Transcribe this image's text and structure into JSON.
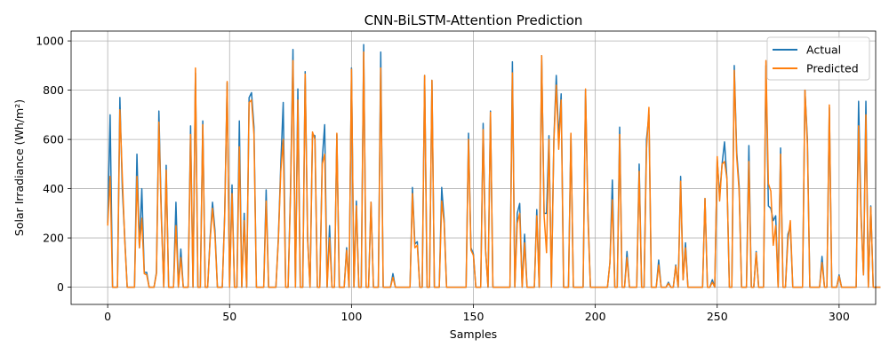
{
  "chart_data": {
    "type": "line",
    "title": "CNN-BiLSTM-Attention Prediction",
    "xlabel": "Samples",
    "ylabel": "Solar Irradiance (Wh/m²)",
    "xlim": [
      -15,
      315
    ],
    "ylim": [
      -70,
      1040
    ],
    "xticks": [
      0,
      50,
      100,
      150,
      200,
      250,
      300
    ],
    "yticks": [
      0,
      200,
      400,
      600,
      800,
      1000
    ],
    "grid": true,
    "legend_position": "top-right",
    "series": [
      {
        "name": "Actual",
        "color": "#1f77b4",
        "values": [
          260,
          700,
          0,
          0,
          0,
          770,
          400,
          200,
          0,
          0,
          0,
          0,
          540,
          160,
          400,
          60,
          60,
          0,
          0,
          0,
          60,
          715,
          300,
          0,
          495,
          0,
          0,
          0,
          345,
          0,
          155,
          0,
          0,
          0,
          655,
          0,
          870,
          0,
          0,
          675,
          0,
          0,
          200,
          345,
          230,
          0,
          0,
          0,
          300,
          830,
          0,
          415,
          0,
          0,
          675,
          0,
          300,
          0,
          770,
          790,
          650,
          0,
          0,
          0,
          0,
          395,
          0,
          0,
          0,
          0,
          200,
          500,
          750,
          0,
          0,
          400,
          965,
          0,
          805,
          0,
          0,
          875,
          200,
          0,
          620,
          615,
          0,
          0,
          520,
          660,
          0,
          250,
          0,
          0,
          620,
          0,
          0,
          0,
          160,
          0,
          890,
          0,
          350,
          0,
          0,
          985,
          0,
          0,
          345,
          0,
          0,
          0,
          955,
          0,
          0,
          0,
          0,
          55,
          0,
          0,
          0,
          0,
          0,
          0,
          0,
          405,
          175,
          185,
          0,
          0,
          860,
          0,
          0,
          840,
          0,
          0,
          0,
          405,
          275,
          0,
          0,
          0,
          0,
          0,
          0,
          0,
          0,
          0,
          625,
          160,
          135,
          0,
          0,
          0,
          665,
          150,
          0,
          715,
          0,
          0,
          0,
          0,
          0,
          0,
          0,
          0,
          915,
          0,
          300,
          340,
          0,
          215,
          0,
          0,
          0,
          0,
          315,
          0,
          940,
          300,
          300,
          615,
          0,
          600,
          860,
          600,
          785,
          0,
          0,
          0,
          620,
          0,
          0,
          0,
          0,
          0,
          800,
          300,
          0,
          0,
          0,
          0,
          0,
          0,
          0,
          0,
          100,
          435,
          0,
          0,
          650,
          0,
          0,
          145,
          0,
          0,
          0,
          0,
          500,
          0,
          0,
          600,
          700,
          0,
          0,
          0,
          110,
          0,
          0,
          0,
          20,
          0,
          0,
          90,
          0,
          450,
          30,
          180,
          0,
          0,
          0,
          0,
          0,
          0,
          0,
          360,
          0,
          0,
          30,
          0,
          520,
          370,
          500,
          590,
          440,
          0,
          0,
          900,
          550,
          410,
          0,
          0,
          0,
          575,
          0,
          0,
          145,
          0,
          0,
          0,
          900,
          330,
          320,
          270,
          290,
          0,
          565,
          0,
          0,
          215,
          245,
          0,
          0,
          0,
          0,
          0,
          800,
          600,
          0,
          0,
          0,
          0,
          0,
          125,
          0,
          0,
          730,
          0,
          0,
          0,
          50,
          0,
          0,
          0,
          0,
          0,
          0,
          0,
          755,
          300,
          50,
          755,
          0,
          330,
          0,
          0,
          0,
          0
        ],
        "__note_removed": ""
      },
      {
        "name": "Predicted",
        "color": "#ff7f0e",
        "values": [
          250,
          450,
          0,
          0,
          0,
          720,
          450,
          190,
          0,
          0,
          0,
          0,
          450,
          160,
          280,
          55,
          50,
          0,
          0,
          0,
          55,
          670,
          280,
          0,
          475,
          0,
          0,
          0,
          250,
          0,
          120,
          0,
          0,
          0,
          620,
          0,
          890,
          0,
          0,
          660,
          0,
          0,
          190,
          320,
          210,
          0,
          0,
          0,
          290,
          835,
          0,
          380,
          0,
          0,
          570,
          0,
          270,
          0,
          750,
          760,
          620,
          0,
          0,
          0,
          0,
          350,
          0,
          0,
          0,
          0,
          190,
          470,
          600,
          0,
          0,
          380,
          920,
          0,
          760,
          0,
          0,
          865,
          190,
          0,
          630,
          600,
          0,
          0,
          500,
          540,
          0,
          200,
          0,
          0,
          625,
          0,
          0,
          0,
          150,
          0,
          885,
          0,
          330,
          0,
          0,
          955,
          0,
          0,
          345,
          0,
          0,
          0,
          890,
          0,
          0,
          0,
          0,
          40,
          0,
          0,
          0,
          0,
          0,
          0,
          0,
          380,
          160,
          170,
          0,
          0,
          860,
          0,
          0,
          840,
          0,
          0,
          0,
          350,
          260,
          0,
          0,
          0,
          0,
          0,
          0,
          0,
          0,
          0,
          600,
          150,
          130,
          0,
          0,
          0,
          640,
          150,
          0,
          710,
          0,
          0,
          0,
          0,
          0,
          0,
          0,
          0,
          870,
          0,
          260,
          300,
          0,
          180,
          0,
          0,
          0,
          0,
          290,
          0,
          940,
          290,
          140,
          600,
          0,
          590,
          820,
          560,
          760,
          0,
          0,
          0,
          625,
          0,
          0,
          0,
          0,
          0,
          805,
          280,
          0,
          0,
          0,
          0,
          0,
          0,
          0,
          0,
          100,
          355,
          0,
          0,
          620,
          0,
          0,
          120,
          0,
          0,
          0,
          0,
          470,
          0,
          0,
          560,
          730,
          0,
          0,
          0,
          90,
          0,
          0,
          0,
          15,
          0,
          0,
          85,
          0,
          430,
          30,
          160,
          0,
          0,
          0,
          0,
          0,
          0,
          0,
          360,
          0,
          0,
          20,
          0,
          530,
          350,
          500,
          510,
          440,
          0,
          0,
          880,
          530,
          390,
          0,
          0,
          0,
          510,
          0,
          0,
          140,
          0,
          0,
          0,
          920,
          420,
          390,
          170,
          250,
          0,
          540,
          0,
          0,
          190,
          270,
          0,
          0,
          0,
          0,
          0,
          800,
          580,
          0,
          0,
          0,
          0,
          0,
          100,
          0,
          0,
          740,
          0,
          0,
          0,
          45,
          0,
          0,
          0,
          0,
          0,
          0,
          0,
          655,
          280,
          50,
          700,
          0,
          325,
          0,
          0,
          0,
          0
        ]
      }
    ]
  }
}
